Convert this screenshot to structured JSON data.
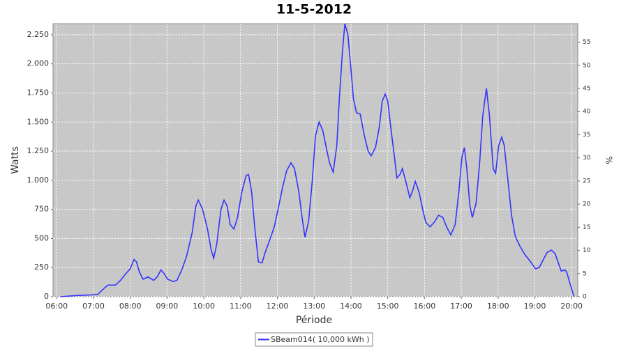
{
  "chart_data": {
    "type": "line",
    "title": "11-5-2012",
    "x_label": "Période",
    "y_label": "Watts",
    "y2_label": "%",
    "xlim": [
      "05:54",
      "20:10"
    ],
    "xticks": [
      "06:00",
      "07:00",
      "08:00",
      "09:00",
      "10:00",
      "11:00",
      "12:00",
      "13:00",
      "14:00",
      "15:00",
      "16:00",
      "17:00",
      "18:00",
      "19:00",
      "20:00"
    ],
    "ylim": [
      0,
      2345
    ],
    "yticks": [
      0,
      250,
      500,
      750,
      {
        "value": 1000,
        "label": "1.000"
      },
      {
        "value": 1250,
        "label": "1.250"
      },
      {
        "value": 1500,
        "label": "1.500"
      },
      {
        "value": 1750,
        "label": "1.750"
      },
      {
        "value": 2000,
        "label": "2.000"
      },
      {
        "value": 2250,
        "label": "2.250"
      }
    ],
    "y2lim": [
      0,
      59
    ],
    "y2ticks": [
      0,
      5,
      10,
      15,
      20,
      25,
      30,
      35,
      40,
      45,
      50,
      55
    ],
    "grid": true,
    "legend": "bottom",
    "x": [
      "06:06",
      "06:33",
      "06:56",
      "07:07",
      "07:19",
      "07:24",
      "07:36",
      "07:44",
      "07:53",
      "08:00",
      "08:06",
      "08:10",
      "08:15",
      "08:21",
      "08:29",
      "08:38",
      "08:44",
      "08:50",
      "08:55",
      "09:01",
      "09:10",
      "09:16",
      "09:24",
      "09:32",
      "09:41",
      "09:47",
      "09:51",
      "09:58",
      "10:06",
      "10:12",
      "10:16",
      "10:21",
      "10:28",
      "10:33",
      "10:38",
      "10:43",
      "10:49",
      "10:55",
      "11:02",
      "11:09",
      "11:13",
      "11:18",
      "11:23",
      "11:29",
      "11:35",
      "11:40",
      "11:47",
      "11:55",
      "12:03",
      "12:09",
      "12:15",
      "12:22",
      "12:28",
      "12:35",
      "12:41",
      "12:45",
      "12:51",
      "12:57",
      "13:02",
      "13:08",
      "13:14",
      "13:19",
      "13:25",
      "13:31",
      "13:37",
      "13:41",
      "13:46",
      "13:50",
      "13:55",
      "14:00",
      "14:04",
      "14:09",
      "14:15",
      "14:22",
      "14:28",
      "14:33",
      "14:40",
      "14:46",
      "14:51",
      "14:56",
      "15:00",
      "15:05",
      "15:11",
      "15:15",
      "15:20",
      "15:24",
      "15:30",
      "15:36",
      "15:40",
      "15:45",
      "15:51",
      "15:57",
      "16:02",
      "16:09",
      "16:16",
      "16:23",
      "16:30",
      "16:36",
      "16:43",
      "16:50",
      "16:56",
      "17:01",
      "17:05",
      "17:09",
      "17:14",
      "17:18",
      "17:24",
      "17:30",
      "17:35",
      "17:41",
      "17:46",
      "17:52",
      "17:56",
      "18:01",
      "18:06",
      "18:10",
      "18:16",
      "18:22",
      "18:28",
      "18:36",
      "18:44",
      "18:53",
      "19:01",
      "19:07",
      "19:14",
      "19:20",
      "19:27",
      "19:33",
      "19:39",
      "19:43",
      "19:49",
      "19:52",
      "19:58",
      "20:04"
    ],
    "series": [
      {
        "name": "SBeam014( 10,000 kWh )",
        "color": "#3333ff",
        "values": [
          0,
          10,
          15,
          20,
          80,
          100,
          100,
          140,
          200,
          240,
          320,
          300,
          210,
          150,
          170,
          140,
          170,
          230,
          200,
          150,
          130,
          140,
          230,
          350,
          550,
          780,
          830,
          750,
          580,
          400,
          330,
          450,
          750,
          830,
          780,
          620,
          580,
          680,
          900,
          1040,
          1050,
          900,
          600,
          300,
          290,
          380,
          480,
          600,
          800,
          950,
          1080,
          1150,
          1100,
          900,
          650,
          510,
          650,
          1000,
          1380,
          1500,
          1430,
          1300,
          1150,
          1070,
          1300,
          1700,
          2100,
          2345,
          2250,
          1950,
          1700,
          1580,
          1570,
          1380,
          1250,
          1210,
          1280,
          1450,
          1680,
          1740,
          1680,
          1450,
          1200,
          1020,
          1050,
          1100,
          980,
          850,
          900,
          990,
          900,
          750,
          640,
          600,
          640,
          700,
          680,
          600,
          530,
          620,
          900,
          1200,
          1280,
          1100,
          780,
          680,
          800,
          1150,
          1550,
          1790,
          1550,
          1100,
          1060,
          1300,
          1370,
          1300,
          1000,
          700,
          520,
          430,
          360,
          300,
          240,
          250,
          320,
          380,
          400,
          370,
          280,
          220,
          230,
          210,
          100,
          0
        ]
      }
    ]
  }
}
